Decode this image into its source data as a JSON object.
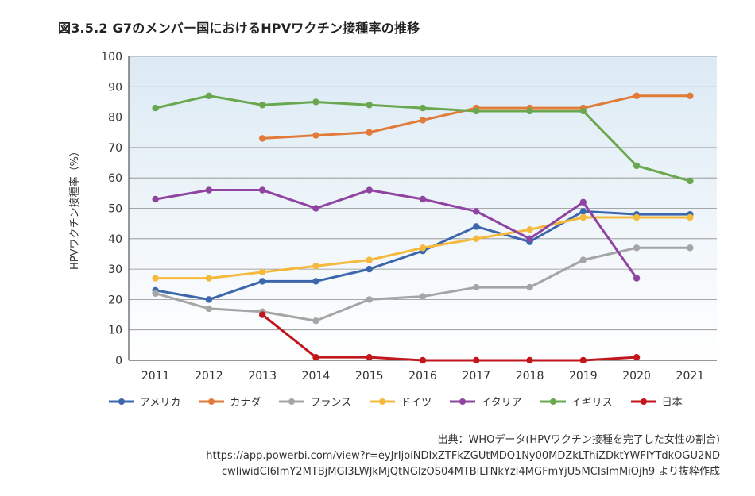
{
  "title": "図3.5.2  G7のメンバー国におけるHPVワクチン接種率の推移",
  "source_lines": [
    "出典：WHOデータ(HPVワクチン接種を完了した女性の割合)",
    "https://app.powerbi.com/view?r=eyJrIjoiNDIxZTFkZGUtMDQ1Ny00MDZkLThiZDktYWFlYTdkOGU2ND",
    "cwIiwidCI6ImY2MTBjMGI3LWJkMjQtNGIzOS04MTBiLTNkYzI4MGFmYjU5MCIsImMiOjh9 より抜粋作成"
  ],
  "chart_data": {
    "type": "line",
    "title": "図3.5.2  G7のメンバー国におけるHPVワクチン接種率の推移",
    "xlabel": "",
    "ylabel": "HPVワクチン接種率（%）",
    "x": [
      "2011",
      "2012",
      "2013",
      "2014",
      "2015",
      "2016",
      "2017",
      "2018",
      "2019",
      "2020",
      "2021"
    ],
    "ylim": [
      0,
      100
    ],
    "yticks": [
      0,
      10,
      20,
      30,
      40,
      50,
      60,
      70,
      80,
      90,
      100
    ],
    "grid": true,
    "legend_position": "bottom",
    "series": [
      {
        "name": "アメリカ",
        "color": "#3c67ad",
        "values": [
          23,
          20,
          26,
          26,
          30,
          36,
          44,
          39,
          49,
          48,
          48
        ]
      },
      {
        "name": "カナダ",
        "color": "#e07b39",
        "values": [
          null,
          null,
          73,
          74,
          75,
          79,
          83,
          83,
          83,
          87,
          87
        ]
      },
      {
        "name": "フランス",
        "color": "#a5a5a5",
        "values": [
          22,
          17,
          16,
          13,
          20,
          21,
          24,
          24,
          33,
          37,
          37
        ]
      },
      {
        "name": "ドイツ",
        "color": "#f5b93b",
        "values": [
          27,
          27,
          29,
          31,
          33,
          37,
          40,
          43,
          47,
          47,
          47
        ]
      },
      {
        "name": "イタリア",
        "color": "#8e44a0",
        "values": [
          53,
          56,
          56,
          50,
          56,
          53,
          49,
          40,
          52,
          27,
          null
        ]
      },
      {
        "name": "イギリス",
        "color": "#6aa84f",
        "values": [
          83,
          87,
          84,
          85,
          84,
          83,
          82,
          82,
          82,
          64,
          59
        ]
      },
      {
        "name": "日本",
        "color": "#c0161c",
        "values": [
          null,
          null,
          15,
          1,
          1,
          0,
          0,
          0,
          0,
          1,
          null
        ]
      }
    ]
  }
}
